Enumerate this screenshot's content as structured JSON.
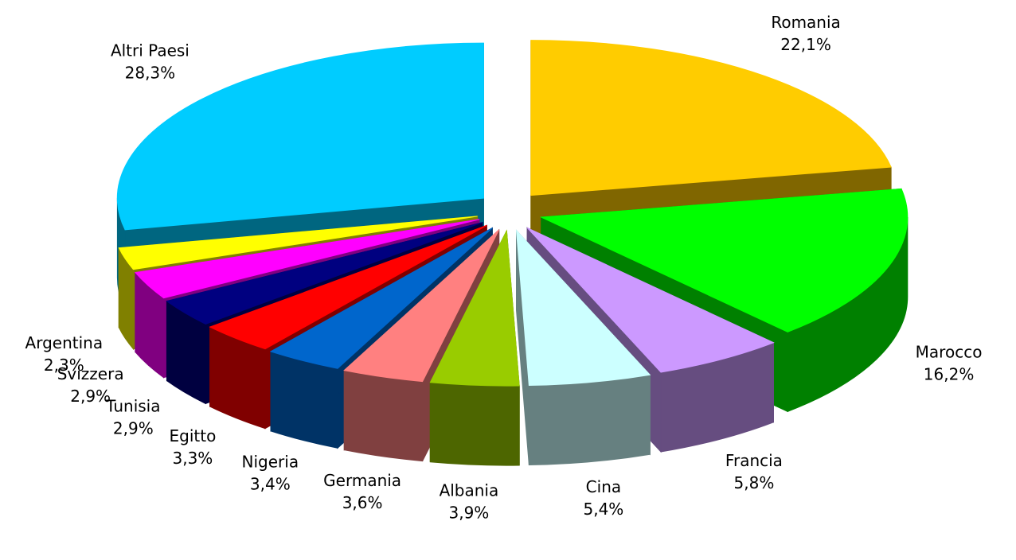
{
  "chart_data": {
    "type": "pie",
    "categories": [
      "Romania",
      "Marocco",
      "Francia",
      "Cina",
      "Albania",
      "Germania",
      "Nigeria",
      "Egitto",
      "Tunisia",
      "Svizzera",
      "Argentina",
      "Altri Paesi"
    ],
    "values": [
      22.1,
      16.2,
      5.8,
      5.4,
      3.9,
      3.6,
      3.4,
      3.3,
      2.9,
      2.9,
      2.3,
      28.3
    ],
    "value_labels": [
      "22,1%",
      "16,2%",
      "5,8%",
      "5,4%",
      "3,9%",
      "3,6%",
      "3,4%",
      "3,3%",
      "2,9%",
      "2,9%",
      "2,3%",
      "28,3%"
    ],
    "colors": [
      "#ffcc00",
      "#00ff00",
      "#cc99ff",
      "#ccffff",
      "#99cc00",
      "#ff8080",
      "#0066cc",
      "#ff0000",
      "#000080",
      "#ff00ff",
      "#ffff00",
      "#00ccff"
    ]
  }
}
